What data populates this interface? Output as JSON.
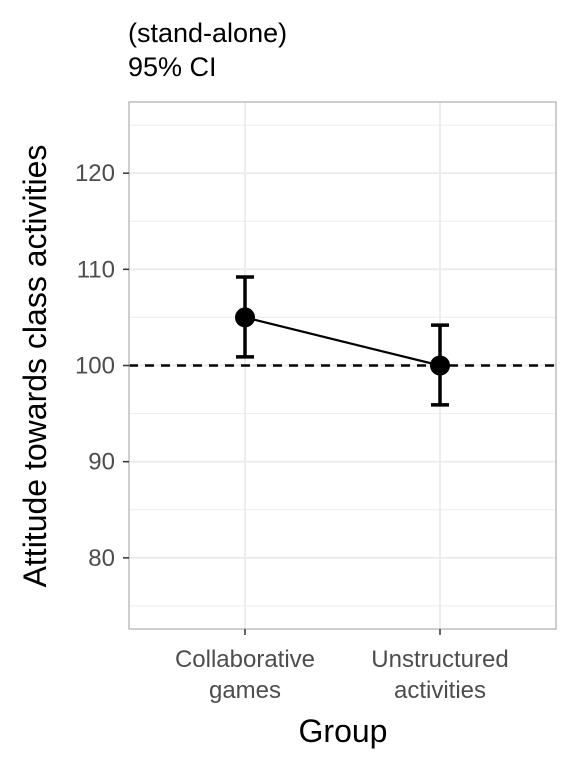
{
  "chart_data": {
    "type": "line",
    "title_lines": [
      "(stand-alone)",
      "95% CI"
    ],
    "xlabel": "Group",
    "ylabel": "Attitude towards class activities",
    "categories": [
      [
        "Collaborative",
        "games"
      ],
      [
        "Unstructured",
        "activities"
      ]
    ],
    "values": [
      105,
      100
    ],
    "ci_lower": [
      100.9,
      95.9
    ],
    "ci_upper": [
      109.2,
      104.2
    ],
    "reference_line": 100,
    "ylim": [
      72.6,
      127.4
    ],
    "yticks": [
      80,
      90,
      100,
      110,
      120
    ],
    "ytick_labels": [
      "80",
      "90",
      "100",
      "110",
      "120"
    ],
    "grid": true,
    "legend": "none",
    "colors": {
      "series": "#000000",
      "grid": "#ebebeb",
      "panel_border": "#b3b3b3",
      "tick_text": "#4d4d4d"
    }
  }
}
